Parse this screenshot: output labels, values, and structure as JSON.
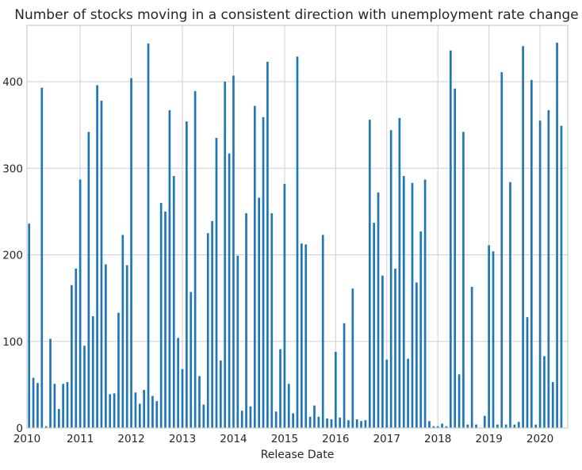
{
  "chart_data": {
    "type": "bar",
    "title": "Number of stocks moving in a consistent direction with unemployment rate change",
    "xlabel": "Release Date",
    "ylabel": "",
    "ylim": [
      0,
      465
    ],
    "yticks": [
      0,
      100,
      200,
      300,
      400
    ],
    "xtick_labels": [
      "2010",
      "2011",
      "2012",
      "2013",
      "2014",
      "2015",
      "2016",
      "2017",
      "2018",
      "2019",
      "2020"
    ],
    "x_start": "2010-01",
    "categories": [
      "2010-01",
      "2010-02",
      "2010-03",
      "2010-04",
      "2010-05",
      "2010-06",
      "2010-07",
      "2010-08",
      "2010-09",
      "2010-10",
      "2010-11",
      "2010-12",
      "2011-01",
      "2011-02",
      "2011-03",
      "2011-04",
      "2011-05",
      "2011-06",
      "2011-07",
      "2011-08",
      "2011-09",
      "2011-10",
      "2011-11",
      "2011-12",
      "2012-01",
      "2012-02",
      "2012-03",
      "2012-04",
      "2012-05",
      "2012-06",
      "2012-07",
      "2012-08",
      "2012-09",
      "2012-10",
      "2012-11",
      "2012-12",
      "2013-01",
      "2013-02",
      "2013-03",
      "2013-04",
      "2013-05",
      "2013-06",
      "2013-07",
      "2013-08",
      "2013-09",
      "2013-10",
      "2013-11",
      "2013-12",
      "2014-01",
      "2014-02",
      "2014-03",
      "2014-04",
      "2014-05",
      "2014-06",
      "2014-07",
      "2014-08",
      "2014-09",
      "2014-10",
      "2014-11",
      "2014-12",
      "2015-01",
      "2015-02",
      "2015-03",
      "2015-04",
      "2015-05",
      "2015-06",
      "2015-07",
      "2015-08",
      "2015-09",
      "2015-10",
      "2015-11",
      "2015-12",
      "2016-01",
      "2016-02",
      "2016-03",
      "2016-04",
      "2016-05",
      "2016-06",
      "2016-07",
      "2016-08",
      "2016-09",
      "2016-10",
      "2016-11",
      "2016-12",
      "2017-01",
      "2017-02",
      "2017-03",
      "2017-04",
      "2017-05",
      "2017-06",
      "2017-07",
      "2017-08",
      "2017-09",
      "2017-10",
      "2017-11",
      "2017-12",
      "2018-01",
      "2018-02",
      "2018-03",
      "2018-04",
      "2018-05",
      "2018-06",
      "2018-07",
      "2018-08",
      "2018-09",
      "2018-10",
      "2018-11",
      "2018-12",
      "2019-01",
      "2019-02",
      "2019-03",
      "2019-04",
      "2019-05",
      "2019-06",
      "2019-07",
      "2019-08",
      "2019-09",
      "2019-10",
      "2019-11",
      "2019-12",
      "2020-01",
      "2020-02",
      "2020-03",
      "2020-04",
      "2020-05",
      "2020-06",
      "2020-07"
    ],
    "values": [
      236,
      58,
      52,
      393,
      2,
      103,
      51,
      22,
      51,
      53,
      165,
      184,
      287,
      95,
      342,
      129,
      396,
      378,
      189,
      39,
      40,
      133,
      223,
      188,
      404,
      41,
      28,
      44,
      444,
      37,
      31,
      260,
      250,
      367,
      291,
      104,
      68,
      354,
      157,
      389,
      60,
      27,
      225,
      239,
      335,
      78,
      400,
      317,
      407,
      199,
      20,
      248,
      25,
      372,
      266,
      359,
      423,
      248,
      19,
      91,
      282,
      51,
      17,
      429,
      213,
      212,
      13,
      26,
      13,
      223,
      11,
      10,
      88,
      12,
      121,
      9,
      161,
      10,
      8,
      9,
      356,
      237,
      272,
      176,
      79,
      344,
      184,
      358,
      291,
      80,
      283,
      168,
      227,
      287,
      8,
      2,
      2,
      5,
      2,
      436,
      392,
      62,
      342,
      4,
      163,
      4,
      0,
      14,
      211,
      204,
      4,
      411,
      4,
      284,
      4,
      7,
      441,
      128,
      402,
      4,
      355,
      83,
      367,
      53,
      445,
      349,
      0
    ],
    "colors": {
      "bar": "#1f77b4",
      "grid": "#cfcfcf",
      "frame": "#cccccc",
      "text": "#262626"
    },
    "grid": true,
    "legend": "none"
  }
}
